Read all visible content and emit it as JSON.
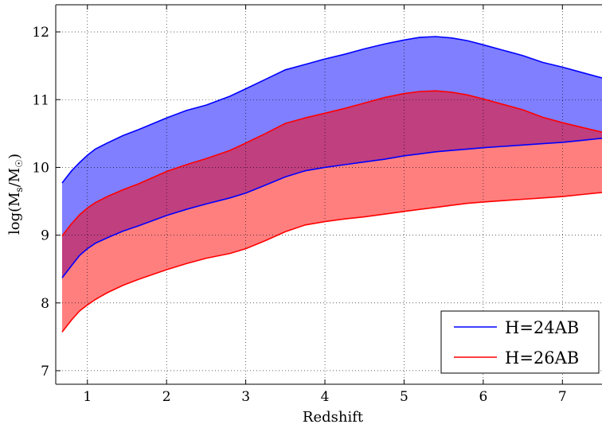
{
  "chart_data": {
    "type": "area",
    "xlabel": "Redshift",
    "ylabel_main": "log(M",
    "ylabel_sub1": "s",
    "ylabel_mid": "/M",
    "ylabel_sub2": "☉",
    "ylabel_end": ")",
    "xlim": [
      0.6,
      7.5
    ],
    "ylim": [
      6.8,
      12.4
    ],
    "x_ticks": [
      1,
      2,
      3,
      4,
      5,
      6,
      7
    ],
    "y_ticks": [
      7,
      8,
      9,
      10,
      11,
      12
    ],
    "grid": true,
    "legend_position": "bottom-right",
    "series": [
      {
        "name": "H=24AB",
        "line_color": "#0000ff",
        "fill_color": "#0000ff",
        "fill_opacity": 0.5,
        "x": [
          0.68,
          0.8,
          0.9,
          1.0,
          1.1,
          1.25,
          1.45,
          1.65,
          2.0,
          2.25,
          2.5,
          2.8,
          3.0,
          3.25,
          3.5,
          3.75,
          4.0,
          4.25,
          4.5,
          4.75,
          5.0,
          5.2,
          5.4,
          5.6,
          5.8,
          6.0,
          6.25,
          6.5,
          6.75,
          7.0,
          7.25,
          7.5
        ],
        "upper": [
          9.77,
          9.95,
          10.07,
          10.18,
          10.27,
          10.36,
          10.47,
          10.56,
          10.73,
          10.84,
          10.92,
          11.05,
          11.16,
          11.3,
          11.44,
          11.52,
          11.6,
          11.67,
          11.75,
          11.82,
          11.88,
          11.92,
          11.93,
          11.91,
          11.87,
          11.81,
          11.73,
          11.65,
          11.55,
          11.48,
          11.4,
          11.32
        ],
        "lower": [
          8.37,
          8.55,
          8.7,
          8.8,
          8.88,
          8.96,
          9.06,
          9.14,
          9.29,
          9.38,
          9.46,
          9.55,
          9.62,
          9.74,
          9.86,
          9.95,
          10.0,
          10.04,
          10.08,
          10.12,
          10.17,
          10.2,
          10.23,
          10.25,
          10.27,
          10.29,
          10.31,
          10.33,
          10.35,
          10.37,
          10.4,
          10.43
        ]
      },
      {
        "name": "H=26AB",
        "line_color": "#ff0000",
        "fill_color": "#ff0000",
        "fill_opacity": 0.5,
        "x": [
          0.68,
          0.8,
          0.9,
          1.0,
          1.1,
          1.25,
          1.45,
          1.65,
          2.0,
          2.25,
          2.5,
          2.8,
          3.0,
          3.25,
          3.5,
          3.75,
          4.0,
          4.25,
          4.5,
          4.75,
          5.0,
          5.2,
          5.4,
          5.6,
          5.8,
          6.0,
          6.25,
          6.5,
          6.75,
          7.0,
          7.25,
          7.5
        ],
        "upper": [
          8.99,
          9.17,
          9.3,
          9.4,
          9.48,
          9.57,
          9.67,
          9.76,
          9.94,
          10.04,
          10.13,
          10.25,
          10.36,
          10.5,
          10.65,
          10.73,
          10.8,
          10.87,
          10.95,
          11.03,
          11.09,
          11.12,
          11.13,
          11.11,
          11.07,
          11.01,
          10.93,
          10.85,
          10.74,
          10.66,
          10.59,
          10.52
        ],
        "lower": [
          7.57,
          7.75,
          7.88,
          7.97,
          8.05,
          8.15,
          8.26,
          8.35,
          8.49,
          8.58,
          8.66,
          8.73,
          8.8,
          8.92,
          9.05,
          9.15,
          9.2,
          9.24,
          9.27,
          9.31,
          9.35,
          9.38,
          9.41,
          9.44,
          9.47,
          9.49,
          9.51,
          9.53,
          9.55,
          9.57,
          9.6,
          9.63
        ]
      }
    ]
  }
}
